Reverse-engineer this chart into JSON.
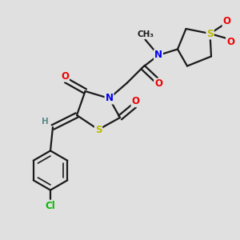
{
  "bg_color": "#e0e0e0",
  "bond_color": "#1a1a1a",
  "atom_colors": {
    "N": "#0000ee",
    "O": "#ee0000",
    "S": "#bbbb00",
    "Cl": "#00bb00",
    "H": "#5a8a8a",
    "C": "#1a1a1a"
  },
  "lw": 1.6,
  "fs": 8.5
}
